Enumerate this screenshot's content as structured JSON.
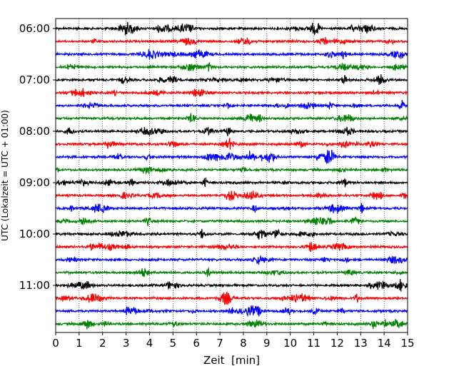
{
  "chart_data": {
    "type": "line",
    "title": "",
    "xlabel": "Zeit  [min]",
    "ylabel": "UTC (Lokalzeit = UTC + 01:00)",
    "xlim": [
      0,
      15
    ],
    "x_ticks": [
      0,
      1,
      2,
      3,
      4,
      5,
      6,
      7,
      8,
      9,
      10,
      11,
      12,
      13,
      14,
      15
    ],
    "y_ticks": [
      {
        "label": "06:00",
        "trace": 0
      },
      {
        "label": "07:00",
        "trace": 4
      },
      {
        "label": "08:00",
        "trace": 8
      },
      {
        "label": "09:00",
        "trace": 12
      },
      {
        "label": "10:00",
        "trace": 16
      },
      {
        "label": "11:00",
        "trace": 20
      }
    ],
    "trace_minutes": 15,
    "trace_count": 24,
    "grid_x": true,
    "grid_style": "dotted",
    "colors": [
      "#000000",
      "#ff0000",
      "#0000ff",
      "#008000"
    ]
  }
}
